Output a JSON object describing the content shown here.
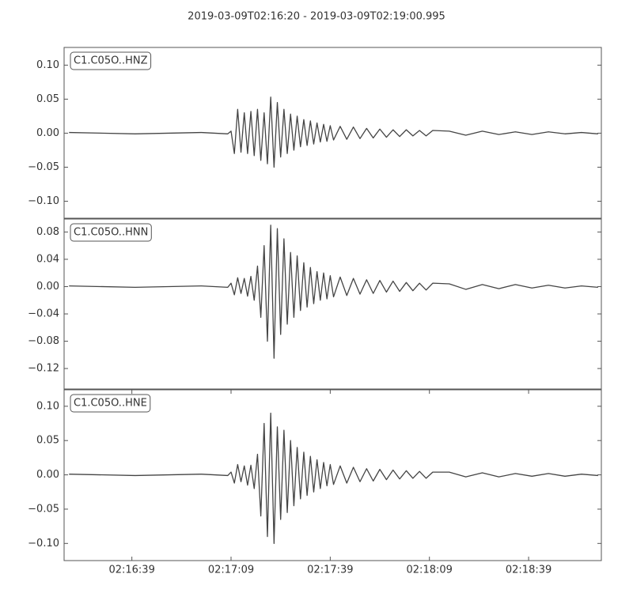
{
  "title": "2019-03-09T02:16:20  -  2019-03-09T02:19:00.995",
  "chart_data": [
    {
      "type": "line",
      "label": "C1.C05O..HNZ",
      "x": [
        "02:16:20",
        "02:16:40",
        "02:17:00",
        "02:17:08",
        "02:17:09",
        "02:17:10",
        "02:17:11",
        "02:17:12",
        "02:17:13",
        "02:17:14",
        "02:17:15",
        "02:17:16",
        "02:17:17",
        "02:17:18",
        "02:17:19",
        "02:17:20",
        "02:17:21",
        "02:17:22",
        "02:17:23",
        "02:17:24",
        "02:17:25",
        "02:17:26",
        "02:17:27",
        "02:17:28",
        "02:17:29",
        "02:17:30",
        "02:17:31",
        "02:17:32",
        "02:17:33",
        "02:17:34",
        "02:17:35",
        "02:17:36",
        "02:17:37",
        "02:17:38",
        "02:17:39",
        "02:17:40",
        "02:17:42",
        "02:17:44",
        "02:17:46",
        "02:17:48",
        "02:17:50",
        "02:17:52",
        "02:17:54",
        "02:17:56",
        "02:17:58",
        "02:18:00",
        "02:18:02",
        "02:18:04",
        "02:18:06",
        "02:18:08",
        "02:18:10",
        "02:18:15",
        "02:18:20",
        "02:18:25",
        "02:18:30",
        "02:18:35",
        "02:18:40",
        "02:18:45",
        "02:18:50",
        "02:18:55",
        "02:19:00"
      ],
      "series": [
        {
          "color": "#444444",
          "values": [
            0.001,
            -0.001,
            0.001,
            -0.001,
            0.003,
            -0.03,
            0.035,
            -0.028,
            0.03,
            -0.03,
            0.032,
            -0.033,
            0.035,
            -0.04,
            0.03,
            -0.045,
            0.053,
            -0.05,
            0.045,
            -0.035,
            0.035,
            -0.03,
            0.028,
            -0.025,
            0.025,
            -0.02,
            0.02,
            -0.018,
            0.018,
            -0.016,
            0.015,
            -0.013,
            0.013,
            -0.012,
            0.011,
            -0.01,
            0.01,
            -0.009,
            0.009,
            -0.008,
            0.007,
            -0.007,
            0.006,
            -0.006,
            0.005,
            -0.005,
            0.005,
            -0.004,
            0.004,
            -0.004,
            0.004,
            0.003,
            -0.003,
            0.003,
            -0.002,
            0.002,
            -0.002,
            0.002,
            -0.001,
            0.001,
            -0.001
          ]
        }
      ],
      "xlim": [
        "02:16:18.5",
        "02:19:01"
      ],
      "ylim": [
        -0.125,
        0.126
      ],
      "yticks": [
        {
          "value": -0.1,
          "label": "−0.10"
        },
        {
          "value": -0.05,
          "label": "−0.05"
        },
        {
          "value": 0,
          "label": "0.00"
        },
        {
          "value": 0.05,
          "label": "0.05"
        },
        {
          "value": 0.1,
          "label": "0.10"
        }
      ]
    },
    {
      "type": "line",
      "label": "C1.C05O..HNN",
      "x": [
        "02:16:20",
        "02:16:40",
        "02:17:00",
        "02:17:08",
        "02:17:09",
        "02:17:10",
        "02:17:11",
        "02:17:12",
        "02:17:13",
        "02:17:14",
        "02:17:15",
        "02:17:16",
        "02:17:17",
        "02:17:18",
        "02:17:19",
        "02:17:20",
        "02:17:21",
        "02:17:22",
        "02:17:23",
        "02:17:24",
        "02:17:25",
        "02:17:26",
        "02:17:27",
        "02:17:28",
        "02:17:29",
        "02:17:30",
        "02:17:31",
        "02:17:32",
        "02:17:33",
        "02:17:34",
        "02:17:35",
        "02:17:36",
        "02:17:37",
        "02:17:38",
        "02:17:39",
        "02:17:40",
        "02:17:42",
        "02:17:44",
        "02:17:46",
        "02:17:48",
        "02:17:50",
        "02:17:52",
        "02:17:54",
        "02:17:56",
        "02:17:58",
        "02:18:00",
        "02:18:02",
        "02:18:04",
        "02:18:06",
        "02:18:08",
        "02:18:10",
        "02:18:15",
        "02:18:20",
        "02:18:25",
        "02:18:30",
        "02:18:35",
        "02:18:40",
        "02:18:45",
        "02:18:50",
        "02:18:55",
        "02:19:00"
      ],
      "series": [
        {
          "color": "#444444",
          "values": [
            0.001,
            -0.001,
            0.001,
            -0.001,
            0.005,
            -0.012,
            0.013,
            -0.01,
            0.012,
            -0.014,
            0.015,
            -0.02,
            0.03,
            -0.045,
            0.06,
            -0.08,
            0.09,
            -0.105,
            0.085,
            -0.07,
            0.07,
            -0.055,
            0.05,
            -0.045,
            0.045,
            -0.035,
            0.035,
            -0.03,
            0.028,
            -0.025,
            0.022,
            -0.02,
            0.02,
            -0.018,
            0.016,
            -0.015,
            0.014,
            -0.013,
            0.012,
            -0.011,
            0.01,
            -0.01,
            0.009,
            -0.008,
            0.008,
            -0.007,
            0.006,
            -0.006,
            0.005,
            -0.005,
            0.005,
            0.004,
            -0.004,
            0.003,
            -0.003,
            0.003,
            -0.002,
            0.002,
            -0.002,
            0.001,
            -0.001
          ]
        }
      ],
      "xlim": [
        "02:16:18.5",
        "02:19:01"
      ],
      "ylim": [
        -0.15,
        0.099
      ],
      "yticks": [
        {
          "value": -0.12,
          "label": "−0.12"
        },
        {
          "value": -0.08,
          "label": "−0.08"
        },
        {
          "value": -0.04,
          "label": "−0.04"
        },
        {
          "value": 0,
          "label": "0.00"
        },
        {
          "value": 0.04,
          "label": "0.04"
        },
        {
          "value": 0.08,
          "label": "0.08"
        }
      ]
    },
    {
      "type": "line",
      "label": "C1.C05O..HNE",
      "x": [
        "02:16:20",
        "02:16:40",
        "02:17:00",
        "02:17:08",
        "02:17:09",
        "02:17:10",
        "02:17:11",
        "02:17:12",
        "02:17:13",
        "02:17:14",
        "02:17:15",
        "02:17:16",
        "02:17:17",
        "02:17:18",
        "02:17:19",
        "02:17:20",
        "02:17:21",
        "02:17:22",
        "02:17:23",
        "02:17:24",
        "02:17:25",
        "02:17:26",
        "02:17:27",
        "02:17:28",
        "02:17:29",
        "02:17:30",
        "02:17:31",
        "02:17:32",
        "02:17:33",
        "02:17:34",
        "02:17:35",
        "02:17:36",
        "02:17:37",
        "02:17:38",
        "02:17:39",
        "02:17:40",
        "02:17:42",
        "02:17:44",
        "02:17:46",
        "02:17:48",
        "02:17:50",
        "02:17:52",
        "02:17:54",
        "02:17:56",
        "02:17:58",
        "02:18:00",
        "02:18:02",
        "02:18:04",
        "02:18:06",
        "02:18:08",
        "02:18:10",
        "02:18:15",
        "02:18:20",
        "02:18:25",
        "02:18:30",
        "02:18:35",
        "02:18:40",
        "02:18:45",
        "02:18:50",
        "02:18:55",
        "02:19:00"
      ],
      "series": [
        {
          "color": "#444444",
          "values": [
            0.001,
            -0.001,
            0.001,
            -0.001,
            0.004,
            -0.012,
            0.015,
            -0.01,
            0.013,
            -0.015,
            0.014,
            -0.02,
            0.03,
            -0.06,
            0.075,
            -0.09,
            0.09,
            -0.1,
            0.07,
            -0.065,
            0.065,
            -0.055,
            0.05,
            -0.045,
            0.04,
            -0.035,
            0.033,
            -0.03,
            0.027,
            -0.025,
            0.022,
            -0.02,
            0.018,
            -0.016,
            0.015,
            -0.014,
            0.013,
            -0.012,
            0.011,
            -0.01,
            0.009,
            -0.009,
            0.008,
            -0.007,
            0.007,
            -0.006,
            0.006,
            -0.005,
            0.005,
            -0.005,
            0.004,
            0.004,
            -0.003,
            0.003,
            -0.003,
            0.002,
            -0.002,
            0.002,
            -0.002,
            0.001,
            -0.001
          ]
        }
      ],
      "xlim": [
        "02:16:18.5",
        "02:19:01"
      ],
      "ylim": [
        -0.125,
        0.124
      ],
      "yticks": [
        {
          "value": -0.1,
          "label": "−0.10"
        },
        {
          "value": -0.05,
          "label": "−0.05"
        },
        {
          "value": 0,
          "label": "0.00"
        },
        {
          "value": 0.05,
          "label": "0.05"
        },
        {
          "value": 0.1,
          "label": "0.10"
        }
      ],
      "xticks": [
        "02:16:39",
        "02:17:09",
        "02:17:39",
        "02:18:09",
        "02:18:39"
      ]
    }
  ]
}
